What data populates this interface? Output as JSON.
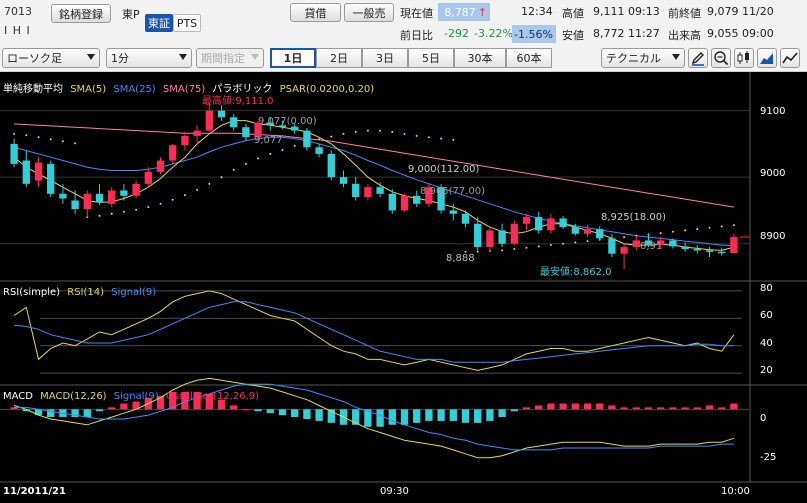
{
  "header": {
    "code": "7013",
    "name": "I H I",
    "brand_button": "銘柄登録",
    "market": "東P",
    "exchange_selected": "東証",
    "exchange_other": "PTS",
    "buy_button": "貸借",
    "sell_button": "一般売",
    "current_label": "現在値",
    "current_value": "8,787",
    "time": "12:34",
    "prev_diff_label": "前日比",
    "diff_value": "-292",
    "diff_pct": "-3.22%",
    "diff_pct_box": "-1.56%",
    "high_label": "高値",
    "high_value": "9,111 09:13",
    "prev_close_label": "前終値",
    "prev_close_value": "9,079 11/20",
    "low_label": "安値",
    "low_value": "8,772 11:27",
    "volume_label": "出来高",
    "volume_value": "9,055 09:00"
  },
  "toolbar": {
    "chart_type": "ローソク足",
    "interval": "1分",
    "period": "期間指定",
    "periods": [
      "1日",
      "2日",
      "3日",
      "5日",
      "30本",
      "60本"
    ],
    "selected_period": "1日",
    "technical": "テクニカル"
  },
  "panels": {
    "main_legend": {
      "name": "単純移動平均",
      "sma5": "SMA(5)",
      "sma25": "SMA(25)",
      "sma75": "SMA(75)",
      "parabolic": "パラボリック",
      "psar": "PSAR(0.0200,0.20)"
    },
    "rsi_legend": {
      "name": "RSI(simple)",
      "rsi": "RSI(14)",
      "signal": "Signal(9)"
    },
    "macd_legend": {
      "name": "MACD",
      "macd": "MACD(12,26)",
      "signal": "Signal(9)",
      "osc": "Oscillator(12,26,9)"
    },
    "price_axis": [
      "9100",
      "9000",
      "8900"
    ],
    "rsi_axis": [
      "80",
      "60",
      "40",
      "20"
    ],
    "macd_axis": [
      "0",
      "-25"
    ],
    "annotations": {
      "high": "最高値:9,111.0",
      "low": "最安値:8,862.0",
      "a1": "9,077(0.00)",
      "a2": "9,077",
      "a3": "9,000(112.00)",
      "a4": "8,965(77.00)",
      "a5": "8,888",
      "a6": "8,925(18.00)",
      "a7": "8,91"
    },
    "time_axis": {
      "date": "11/2011/21",
      "t930": "09:30",
      "t1000": "10:00"
    }
  },
  "colors": {
    "up": "#ff2a55",
    "down": "#30d0d8",
    "sma5": "#e6d84a",
    "sma25": "#3f8cff",
    "sma75": "#ff7fa6",
    "psar": "#e6d84a",
    "rsi": "#e6d84a",
    "signal": "#3f8cff",
    "macd": "#e6d84a",
    "osc_pos": "#ff2a55",
    "osc_neg": "#30d0d8"
  },
  "chart_data": {
    "type": "candlestick",
    "interval": "1m",
    "candles": [
      {
        "o": 9050,
        "h": 9058,
        "l": 9015,
        "c": 9020
      },
      {
        "o": 9025,
        "h": 9040,
        "l": 8985,
        "c": 8990
      },
      {
        "o": 8995,
        "h": 9030,
        "l": 8985,
        "c": 9022
      },
      {
        "o": 9020,
        "h": 9025,
        "l": 8970,
        "c": 8975
      },
      {
        "o": 8975,
        "h": 8990,
        "l": 8960,
        "c": 8968
      },
      {
        "o": 8965,
        "h": 8980,
        "l": 8945,
        "c": 8952
      },
      {
        "o": 8952,
        "h": 8980,
        "l": 8940,
        "c": 8975
      },
      {
        "o": 8975,
        "h": 8990,
        "l": 8958,
        "c": 8962
      },
      {
        "o": 8960,
        "h": 8985,
        "l": 8955,
        "c": 8980
      },
      {
        "o": 8980,
        "h": 8990,
        "l": 8965,
        "c": 8972
      },
      {
        "o": 8972,
        "h": 8995,
        "l": 8968,
        "c": 8990
      },
      {
        "o": 8990,
        "h": 9015,
        "l": 8985,
        "c": 9008
      },
      {
        "o": 9008,
        "h": 9030,
        "l": 9005,
        "c": 9025
      },
      {
        "o": 9025,
        "h": 9050,
        "l": 9020,
        "c": 9048
      },
      {
        "o": 9048,
        "h": 9068,
        "l": 9040,
        "c": 9062
      },
      {
        "o": 9062,
        "h": 9078,
        "l": 9050,
        "c": 9070
      },
      {
        "o": 9070,
        "h": 9111,
        "l": 9068,
        "c": 9100
      },
      {
        "o": 9100,
        "h": 9108,
        "l": 9085,
        "c": 9090
      },
      {
        "o": 9090,
        "h": 9095,
        "l": 9070,
        "c": 9075
      },
      {
        "o": 9075,
        "h": 9080,
        "l": 9055,
        "c": 9060
      },
      {
        "o": 9060,
        "h": 9085,
        "l": 9055,
        "c": 9082
      },
      {
        "o": 9082,
        "h": 9090,
        "l": 9070,
        "c": 9078
      },
      {
        "o": 9078,
        "h": 9085,
        "l": 9072,
        "c": 9076
      },
      {
        "o": 9076,
        "h": 9080,
        "l": 9065,
        "c": 9070
      },
      {
        "o": 9070,
        "h": 9074,
        "l": 9040,
        "c": 9045
      },
      {
        "o": 9045,
        "h": 9050,
        "l": 9030,
        "c": 9035
      },
      {
        "o": 9035,
        "h": 9040,
        "l": 8995,
        "c": 9000
      },
      {
        "o": 9000,
        "h": 9010,
        "l": 8985,
        "c": 8990
      },
      {
        "o": 8990,
        "h": 9000,
        "l": 8965,
        "c": 8970
      },
      {
        "o": 8970,
        "h": 8990,
        "l": 8965,
        "c": 8985
      },
      {
        "o": 8985,
        "h": 8992,
        "l": 8970,
        "c": 8975
      },
      {
        "o": 8975,
        "h": 8982,
        "l": 8945,
        "c": 8950
      },
      {
        "o": 8950,
        "h": 8975,
        "l": 8948,
        "c": 8972
      },
      {
        "o": 8972,
        "h": 8980,
        "l": 8955,
        "c": 8960
      },
      {
        "o": 8960,
        "h": 8990,
        "l": 8955,
        "c": 8985
      },
      {
        "o": 8985,
        "h": 8990,
        "l": 8945,
        "c": 8950
      },
      {
        "o": 8950,
        "h": 8960,
        "l": 8935,
        "c": 8945
      },
      {
        "o": 8945,
        "h": 8950,
        "l": 8925,
        "c": 8930
      },
      {
        "o": 8930,
        "h": 8940,
        "l": 8890,
        "c": 8895
      },
      {
        "o": 8895,
        "h": 8925,
        "l": 8888,
        "c": 8920
      },
      {
        "o": 8920,
        "h": 8930,
        "l": 8895,
        "c": 8900
      },
      {
        "o": 8900,
        "h": 8935,
        "l": 8898,
        "c": 8930
      },
      {
        "o": 8930,
        "h": 8945,
        "l": 8920,
        "c": 8940
      },
      {
        "o": 8940,
        "h": 8948,
        "l": 8915,
        "c": 8920
      },
      {
        "o": 8920,
        "h": 8945,
        "l": 8915,
        "c": 8938
      },
      {
        "o": 8938,
        "h": 8942,
        "l": 8922,
        "c": 8925
      },
      {
        "o": 8925,
        "h": 8930,
        "l": 8912,
        "c": 8915
      },
      {
        "o": 8915,
        "h": 8928,
        "l": 8910,
        "c": 8922
      },
      {
        "o": 8922,
        "h": 8926,
        "l": 8905,
        "c": 8908
      },
      {
        "o": 8908,
        "h": 8915,
        "l": 8880,
        "c": 8885
      },
      {
        "o": 8885,
        "h": 8900,
        "l": 8862,
        "c": 8895
      },
      {
        "o": 8895,
        "h": 8912,
        "l": 8890,
        "c": 8905
      },
      {
        "o": 8905,
        "h": 8915,
        "l": 8895,
        "c": 8898
      },
      {
        "o": 8898,
        "h": 8910,
        "l": 8892,
        "c": 8905
      },
      {
        "o": 8905,
        "h": 8908,
        "l": 8893,
        "c": 8896
      },
      {
        "o": 8896,
        "h": 8902,
        "l": 8888,
        "c": 8892
      },
      {
        "o": 8892,
        "h": 8898,
        "l": 8885,
        "c": 8890
      },
      {
        "o": 8890,
        "h": 8895,
        "l": 8880,
        "c": 8888
      },
      {
        "o": 8888,
        "h": 8894,
        "l": 8882,
        "c": 8886
      },
      {
        "o": 8886,
        "h": 8915,
        "l": 8885,
        "c": 8910
      }
    ],
    "sma5": [
      9030,
      9015,
      9005,
      8995,
      8985,
      8975,
      8965,
      8962,
      8963,
      8968,
      8975,
      8985,
      8998,
      9015,
      9030,
      9050,
      9065,
      9078,
      9085,
      9085,
      9080,
      9078,
      9075,
      9072,
      9068,
      9060,
      9050,
      9035,
      9018,
      9000,
      8988,
      8978,
      8972,
      8968,
      8965,
      8960,
      8955,
      8948,
      8935,
      8925,
      8918,
      8915,
      8918,
      8925,
      8930,
      8930,
      8925,
      8920,
      8915,
      8908,
      8900,
      8898,
      8898,
      8899,
      8898,
      8895,
      8893,
      8891,
      8890,
      8895
    ],
    "sma25": [
      9045,
      9040,
      9035,
      9030,
      9025,
      9020,
      9015,
      9012,
      9010,
      9010,
      9010,
      9012,
      9015,
      9020,
      9025,
      9030,
      9038,
      9045,
      9050,
      9055,
      9058,
      9060,
      9060,
      9058,
      9055,
      9050,
      9045,
      9040,
      9033,
      9025,
      9018,
      9010,
      9003,
      8996,
      8990,
      8984,
      8978,
      8972,
      8966,
      8960,
      8954,
      8948,
      8943,
      8938,
      8934,
      8930,
      8927,
      8924,
      8921,
      8918,
      8915,
      8912,
      8910,
      8908,
      8906,
      8904,
      8902,
      8900,
      8898,
      8897
    ],
    "sma75": [
      9080,
      9079,
      9078,
      9077,
      9076,
      9075,
      9074,
      9073,
      9072,
      9071,
      9070,
      9069,
      9068,
      9067,
      9066,
      9066,
      9066,
      9066,
      9066,
      9065,
      9064,
      9063,
      9062,
      9060,
      9058,
      9056,
      9054,
      9051,
      9048,
      9045,
      9042,
      9039,
      9036,
      9033,
      9030,
      9027,
      9024,
      9021,
      9018,
      9015,
      9012,
      9009,
      9006,
      9003,
      9000,
      8997,
      8994,
      8991,
      8988,
      8985,
      8982,
      8979,
      8976,
      8973,
      8970,
      8967,
      8964,
      8961,
      8958,
      8955
    ],
    "psar": [
      9065,
      9063,
      9060,
      9057,
      9054,
      9051,
      8940,
      8942,
      8945,
      8948,
      8951,
      8955,
      8960,
      8966,
      8973,
      8981,
      8990,
      9000,
      9011,
      9020,
      9028,
      9035,
      9041,
      9047,
      9052,
      9057,
      9061,
      9065,
      9068,
      9070,
      9070,
      9068,
      9065,
      9062,
      9060,
      9058,
      9056,
      8888,
      8888,
      8889,
      8890,
      8892,
      8894,
      8896,
      8898,
      8900,
      8902,
      8904,
      8906,
      8908,
      8910,
      8912,
      8914,
      8916,
      8918,
      8920,
      8922,
      8924,
      8926,
      8928
    ],
    "rsi": [
      62,
      68,
      30,
      38,
      42,
      40,
      45,
      50,
      48,
      52,
      56,
      60,
      65,
      72,
      76,
      78,
      80,
      78,
      74,
      70,
      66,
      62,
      60,
      58,
      52,
      46,
      40,
      36,
      34,
      30,
      30,
      28,
      26,
      28,
      30,
      28,
      26,
      24,
      22,
      24,
      26,
      30,
      34,
      36,
      38,
      38,
      36,
      36,
      38,
      40,
      42,
      44,
      46,
      44,
      42,
      40,
      42,
      38,
      36,
      48
    ],
    "rsi_signal": [
      55,
      54,
      52,
      48,
      46,
      44,
      42,
      42,
      42,
      44,
      46,
      48,
      52,
      56,
      60,
      64,
      68,
      70,
      72,
      72,
      70,
      68,
      66,
      64,
      60,
      56,
      52,
      48,
      44,
      40,
      36,
      34,
      32,
      30,
      30,
      30,
      28,
      28,
      28,
      28,
      28,
      29,
      30,
      31,
      32,
      33,
      34,
      35,
      36,
      37,
      38,
      39,
      40,
      40,
      40,
      40,
      41,
      41,
      40,
      40
    ],
    "macd": [
      2,
      0,
      -3,
      -5,
      -6,
      -7,
      -8,
      -6,
      -4,
      -2,
      0,
      3,
      6,
      10,
      13,
      15,
      16,
      15,
      14,
      13,
      12,
      11,
      9,
      7,
      5,
      2,
      -1,
      -4,
      -7,
      -10,
      -12,
      -14,
      -16,
      -17,
      -18,
      -19,
      -21,
      -23,
      -25,
      -25,
      -24,
      -22,
      -20,
      -19,
      -18,
      -17,
      -17,
      -17,
      -17,
      -18,
      -19,
      -19,
      -19,
      -18,
      -18,
      -18,
      -18,
      -17,
      -17,
      -15
    ],
    "macd_signal": [
      1,
      1,
      0,
      -1,
      -2,
      -3,
      -4,
      -5,
      -5,
      -5,
      -4,
      -3,
      -1,
      1,
      4,
      6,
      8,
      10,
      12,
      13,
      13,
      13,
      12,
      11,
      10,
      8,
      6,
      4,
      1,
      -1,
      -3,
      -6,
      -8,
      -10,
      -12,
      -13,
      -15,
      -16,
      -18,
      -19,
      -20,
      -21,
      -21,
      -21,
      -21,
      -20,
      -20,
      -20,
      -20,
      -20,
      -20,
      -20,
      -20,
      -19,
      -19,
      -19,
      -19,
      -19,
      -18,
      -18
    ],
    "price_ylim": [
      8850,
      9125
    ],
    "rsi_ylim": [
      15,
      85
    ],
    "macd_ylim": [
      -35,
      10
    ]
  }
}
